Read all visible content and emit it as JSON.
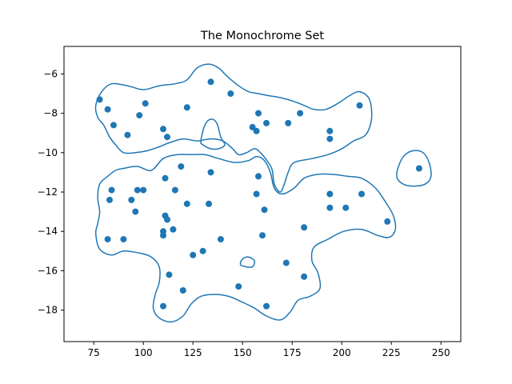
{
  "chart_data": {
    "type": "scatter",
    "title": "The Monochrome Set",
    "xlabel": "",
    "ylabel": "",
    "xlim": [
      60,
      260
    ],
    "ylim": [
      -19.6,
      -4.6
    ],
    "xticks": [
      75,
      100,
      125,
      150,
      175,
      200,
      225,
      250
    ],
    "yticks": [
      -18,
      -16,
      -14,
      -12,
      -10,
      -8,
      -6
    ],
    "grid": false,
    "colors": {
      "point": "#1f77b4",
      "contour": "#1f77b4",
      "axes": "#000000"
    },
    "points": [
      {
        "x": 78,
        "y": -7.3
      },
      {
        "x": 82,
        "y": -7.8
      },
      {
        "x": 85,
        "y": -8.6
      },
      {
        "x": 92,
        "y": -9.1
      },
      {
        "x": 98,
        "y": -8.1
      },
      {
        "x": 101,
        "y": -7.5
      },
      {
        "x": 110,
        "y": -8.8
      },
      {
        "x": 112,
        "y": -9.2
      },
      {
        "x": 122,
        "y": -7.7
      },
      {
        "x": 134,
        "y": -6.4
      },
      {
        "x": 144,
        "y": -7.0
      },
      {
        "x": 158,
        "y": -8.0
      },
      {
        "x": 155,
        "y": -8.7
      },
      {
        "x": 157,
        "y": -8.9
      },
      {
        "x": 162,
        "y": -8.5
      },
      {
        "x": 173,
        "y": -8.5
      },
      {
        "x": 179,
        "y": -8.0
      },
      {
        "x": 194,
        "y": -8.9
      },
      {
        "x": 194,
        "y": -9.3
      },
      {
        "x": 209,
        "y": -7.6
      },
      {
        "x": 239,
        "y": -10.8
      },
      {
        "x": 84,
        "y": -11.9
      },
      {
        "x": 83,
        "y": -12.4
      },
      {
        "x": 94,
        "y": -12.4
      },
      {
        "x": 97,
        "y": -11.9
      },
      {
        "x": 100,
        "y": -11.9
      },
      {
        "x": 96,
        "y": -13.0
      },
      {
        "x": 111,
        "y": -11.3
      },
      {
        "x": 116,
        "y": -11.9
      },
      {
        "x": 119,
        "y": -10.7
      },
      {
        "x": 134,
        "y": -11.0
      },
      {
        "x": 122,
        "y": -12.6
      },
      {
        "x": 133,
        "y": -12.6
      },
      {
        "x": 111,
        "y": -13.2
      },
      {
        "x": 112,
        "y": -13.4
      },
      {
        "x": 115,
        "y": -13.9
      },
      {
        "x": 110,
        "y": -14.0
      },
      {
        "x": 110,
        "y": -14.2
      },
      {
        "x": 82,
        "y": -14.4
      },
      {
        "x": 90,
        "y": -14.4
      },
      {
        "x": 139,
        "y": -14.4
      },
      {
        "x": 158,
        "y": -11.2
      },
      {
        "x": 157,
        "y": -12.1
      },
      {
        "x": 161,
        "y": -12.9
      },
      {
        "x": 160,
        "y": -14.2
      },
      {
        "x": 194,
        "y": -12.1
      },
      {
        "x": 194,
        "y": -12.8
      },
      {
        "x": 202,
        "y": -12.8
      },
      {
        "x": 210,
        "y": -12.1
      },
      {
        "x": 223,
        "y": -13.5
      },
      {
        "x": 181,
        "y": -13.8
      },
      {
        "x": 125,
        "y": -15.2
      },
      {
        "x": 130,
        "y": -15.0
      },
      {
        "x": 113,
        "y": -16.2
      },
      {
        "x": 120,
        "y": -17.0
      },
      {
        "x": 110,
        "y": -17.8
      },
      {
        "x": 148,
        "y": -16.8
      },
      {
        "x": 172,
        "y": -15.6
      },
      {
        "x": 181,
        "y": -16.3
      },
      {
        "x": 162,
        "y": -17.8
      }
    ],
    "contours": [
      [
        [
          76,
          -7.6
        ],
        [
          79,
          -6.9
        ],
        [
          84,
          -6.5
        ],
        [
          92,
          -6.6
        ],
        [
          100,
          -6.8
        ],
        [
          108,
          -6.6
        ],
        [
          116,
          -6.5
        ],
        [
          122,
          -6.3
        ],
        [
          127,
          -5.7
        ],
        [
          133,
          -5.5
        ],
        [
          138,
          -5.7
        ],
        [
          142,
          -6.1
        ],
        [
          148,
          -6.6
        ],
        [
          153,
          -6.9
        ],
        [
          158,
          -7.0
        ],
        [
          163,
          -7.1
        ],
        [
          169,
          -7.2
        ],
        [
          176,
          -7.4
        ],
        [
          181,
          -7.6
        ],
        [
          186,
          -7.8
        ],
        [
          192,
          -7.8
        ],
        [
          198,
          -7.5
        ],
        [
          204,
          -7.1
        ],
        [
          209,
          -6.9
        ],
        [
          214,
          -7.3
        ],
        [
          215,
          -8.3
        ],
        [
          212,
          -9.1
        ],
        [
          206,
          -9.4
        ],
        [
          200,
          -9.8
        ],
        [
          193,
          -10.1
        ],
        [
          185,
          -10.3
        ],
        [
          176,
          -10.5
        ],
        [
          173,
          -11.0
        ],
        [
          171,
          -11.6
        ],
        [
          169,
          -12.0
        ],
        [
          166,
          -11.6
        ],
        [
          165,
          -10.9
        ],
        [
          163,
          -10.5
        ],
        [
          159,
          -10.0
        ],
        [
          156,
          -9.8
        ],
        [
          152,
          -10.0
        ],
        [
          148,
          -10.1
        ],
        [
          145,
          -9.8
        ],
        [
          140,
          -9.4
        ],
        [
          134,
          -9.3
        ],
        [
          127,
          -9.4
        ],
        [
          120,
          -9.3
        ],
        [
          113,
          -9.5
        ],
        [
          108,
          -9.7
        ],
        [
          102,
          -9.9
        ],
        [
          96,
          -10.0
        ],
        [
          90,
          -10.0
        ],
        [
          86,
          -9.6
        ],
        [
          83,
          -9.2
        ],
        [
          80,
          -8.6
        ],
        [
          77,
          -8.2
        ],
        [
          76,
          -7.6
        ]
      ],
      [
        [
          129,
          -9.4
        ],
        [
          131,
          -8.6
        ],
        [
          134,
          -8.3
        ],
        [
          137,
          -8.5
        ],
        [
          139,
          -9.2
        ],
        [
          141,
          -9.6
        ],
        [
          138,
          -9.8
        ],
        [
          134,
          -9.8
        ],
        [
          130,
          -9.6
        ],
        [
          129,
          -9.4
        ]
      ],
      [
        [
          90,
          -10.8
        ],
        [
          97,
          -10.7
        ],
        [
          104,
          -10.9
        ],
        [
          110,
          -10.3
        ],
        [
          117,
          -10.1
        ],
        [
          124,
          -10.1
        ],
        [
          131,
          -10.1
        ],
        [
          138,
          -10.3
        ],
        [
          146,
          -10.5
        ],
        [
          153,
          -10.4
        ],
        [
          157,
          -10.2
        ],
        [
          161,
          -10.4
        ],
        [
          164,
          -11.0
        ],
        [
          166,
          -11.8
        ],
        [
          170,
          -12.1
        ],
        [
          176,
          -11.8
        ],
        [
          181,
          -11.3
        ],
        [
          188,
          -11.1
        ],
        [
          195,
          -11.1
        ],
        [
          203,
          -11.2
        ],
        [
          210,
          -11.3
        ],
        [
          217,
          -11.8
        ],
        [
          222,
          -12.5
        ],
        [
          226,
          -13.2
        ],
        [
          227,
          -13.9
        ],
        [
          224,
          -14.3
        ],
        [
          218,
          -14.2
        ],
        [
          210,
          -13.9
        ],
        [
          201,
          -14.0
        ],
        [
          193,
          -14.4
        ],
        [
          186,
          -14.8
        ],
        [
          185,
          -15.5
        ],
        [
          188,
          -16.1
        ],
        [
          189,
          -16.9
        ],
        [
          184,
          -17.3
        ],
        [
          178,
          -17.5
        ],
        [
          174,
          -18.1
        ],
        [
          169,
          -18.5
        ],
        [
          162,
          -18.3
        ],
        [
          156,
          -17.9
        ],
        [
          150,
          -17.6
        ],
        [
          143,
          -17.3
        ],
        [
          136,
          -17.2
        ],
        [
          129,
          -17.3
        ],
        [
          124,
          -17.7
        ],
        [
          120,
          -18.3
        ],
        [
          114,
          -18.6
        ],
        [
          108,
          -18.4
        ],
        [
          105,
          -17.9
        ],
        [
          106,
          -17.2
        ],
        [
          108,
          -16.6
        ],
        [
          108,
          -15.8
        ],
        [
          104,
          -15.3
        ],
        [
          98,
          -15.1
        ],
        [
          90,
          -15.0
        ],
        [
          84,
          -15.2
        ],
        [
          78,
          -14.9
        ],
        [
          76,
          -14.1
        ],
        [
          77,
          -13.6
        ],
        [
          78,
          -13.0
        ],
        [
          77,
          -12.3
        ],
        [
          78,
          -11.6
        ],
        [
          82,
          -11.2
        ],
        [
          86,
          -10.9
        ],
        [
          90,
          -10.8
        ]
      ],
      [
        [
          150,
          -15.4
        ],
        [
          153,
          -15.3
        ],
        [
          156,
          -15.5
        ],
        [
          155,
          -15.8
        ],
        [
          152,
          -15.8
        ],
        [
          149,
          -15.7
        ],
        [
          150,
          -15.4
        ]
      ],
      [
        [
          228,
          -10.9
        ],
        [
          231,
          -10.2
        ],
        [
          236,
          -9.9
        ],
        [
          241,
          -10.0
        ],
        [
          244,
          -10.5
        ],
        [
          245,
          -11.2
        ],
        [
          242,
          -11.6
        ],
        [
          236,
          -11.7
        ],
        [
          231,
          -11.6
        ],
        [
          228,
          -11.3
        ],
        [
          228,
          -10.9
        ]
      ]
    ]
  }
}
